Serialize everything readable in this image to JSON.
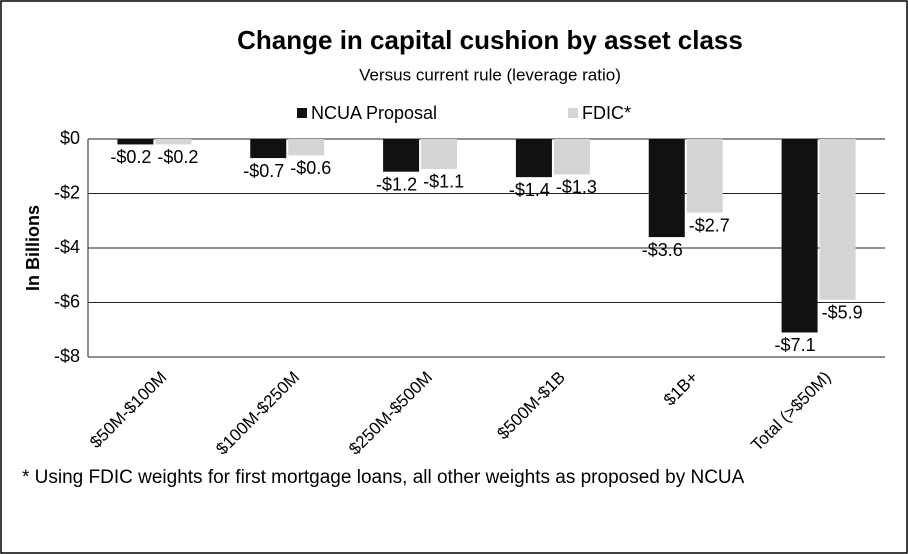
{
  "chart_data": {
    "type": "bar",
    "title": "Change in capital cushion by asset class",
    "subtitle": "Versus current rule (leverage ratio)",
    "y_label": "In Billions",
    "footnote": "* Using FDIC weights for first mortgage loans, all other weights as proposed by NCUA",
    "categories": [
      "$50M-$100M",
      "$100M-$250M",
      "$250M-$500M",
      "$500M-$1B",
      "$1B+",
      "Total (>$50M)"
    ],
    "series": [
      {
        "name": "NCUA Proposal",
        "color": "#111111",
        "values": [
          -0.2,
          -0.7,
          -1.2,
          -1.4,
          -3.6,
          -7.1
        ],
        "value_labels": [
          "-$0.2",
          "-$0.7",
          "-$1.2",
          "-$1.4",
          "-$3.6",
          "-$7.1"
        ]
      },
      {
        "name": "FDIC*",
        "color": "#d4d4d4",
        "values": [
          -0.2,
          -0.6,
          -1.1,
          -1.3,
          -2.7,
          -5.9
        ],
        "value_labels": [
          "-$0.2",
          "-$0.6",
          "-$1.1",
          "-$1.3",
          "-$2.7",
          "-$5.9"
        ]
      }
    ],
    "ylim": [
      -8,
      0
    ],
    "yticks": [
      {
        "value": 0,
        "label": "$0"
      },
      {
        "value": -2,
        "label": "-$2"
      },
      {
        "value": -4,
        "label": "-$4"
      },
      {
        "value": -6,
        "label": "-$6"
      },
      {
        "value": -8,
        "label": "-$8"
      }
    ],
    "grid": true,
    "legend": "top"
  }
}
